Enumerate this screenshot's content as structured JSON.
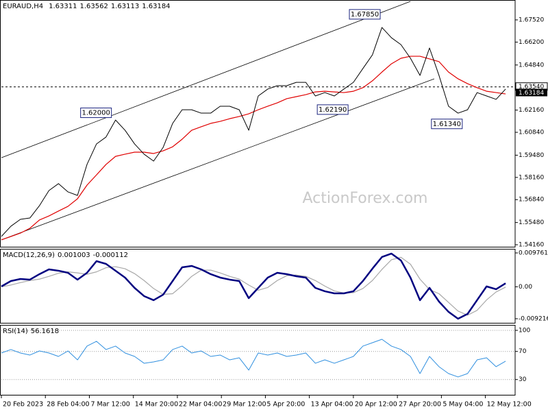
{
  "chart_data": [
    {
      "type": "line",
      "title": "EURAUD,H4",
      "ohlc": [
        1.63311,
        1.63562,
        1.63113,
        1.63184
      ],
      "watermark": "ActionForex.com",
      "x": [
        0,
        8,
        16,
        24,
        32,
        40,
        48,
        56,
        64,
        72,
        80,
        88,
        96,
        104,
        112,
        120,
        128,
        136,
        144,
        152,
        160,
        168,
        176,
        184,
        192,
        200,
        208,
        216,
        224,
        232,
        240,
        248,
        256,
        264,
        272,
        280,
        288,
        296,
        304,
        312,
        320,
        328,
        336,
        344,
        352,
        360,
        368,
        376,
        384,
        392,
        400,
        408,
        416,
        424
      ],
      "xlim": [
        0,
        432
      ],
      "ylim": [
        1.5404,
        1.6862
      ],
      "yticks": [
        {
          "value": 1.6752,
          "label": "1.67520"
        },
        {
          "value": 1.662,
          "label": "1.66200"
        },
        {
          "value": 1.6484,
          "label": "1.64840"
        },
        {
          "value": 1.6216,
          "label": "1.62160"
        },
        {
          "value": 1.6084,
          "label": "1.60840"
        },
        {
          "value": 1.5948,
          "label": "1.59480"
        },
        {
          "value": 1.5816,
          "label": "1.58160"
        },
        {
          "value": 1.5684,
          "label": "1.56840"
        },
        {
          "value": 1.5548,
          "label": "1.55480"
        },
        {
          "value": 1.5416,
          "label": "1.54160"
        }
      ],
      "hline": {
        "value": 1.6354,
        "label": "1.63540"
      },
      "series": [
        {
          "color": "#000000",
          "values": [
            1.5465,
            1.5526,
            1.5567,
            1.5575,
            1.5648,
            1.5738,
            1.5779,
            1.573,
            1.5709,
            1.5893,
            1.6015,
            1.6056,
            1.6157,
            1.6096,
            1.6015,
            1.5954,
            1.5913,
            1.5994,
            1.6137,
            1.6218,
            1.6218,
            1.6198,
            1.6198,
            1.6239,
            1.6239,
            1.6218,
            1.6096,
            1.63,
            1.6341,
            1.6361,
            1.6361,
            1.6381,
            1.6381,
            1.63,
            1.632,
            1.63,
            1.6341,
            1.6381,
            1.6463,
            1.6544,
            1.6707,
            1.6646,
            1.6605,
            1.6524,
            1.6422,
            1.6585,
            1.6422,
            1.6239,
            1.6198,
            1.6218,
            1.632,
            1.63,
            1.628,
            1.6341
          ]
        },
        {
          "color": "#e00000",
          "values": [
            1.5445,
            1.5465,
            1.5485,
            1.5514,
            1.5563,
            1.5587,
            1.5616,
            1.5644,
            1.5689,
            1.577,
            1.5831,
            1.5893,
            1.5941,
            1.5954,
            1.5966,
            1.5966,
            1.5958,
            1.5974,
            1.5998,
            1.6043,
            1.6096,
            1.6117,
            1.6137,
            1.6149,
            1.6165,
            1.6178,
            1.6194,
            1.6218,
            1.6239,
            1.6259,
            1.6284,
            1.6296,
            1.6308,
            1.6324,
            1.6328,
            1.6324,
            1.632,
            1.6328,
            1.6349,
            1.639,
            1.6442,
            1.6491,
            1.6524,
            1.6536,
            1.6536,
            1.652,
            1.6504,
            1.6442,
            1.6402,
            1.6373,
            1.6349,
            1.6328,
            1.632,
            1.6312
          ]
        }
      ],
      "trendlines": [
        {
          "x": [
            0,
            344
          ],
          "values": [
            1.5933,
            1.6862
          ]
        },
        {
          "x": [
            0,
            364
          ],
          "values": [
            1.5445,
            1.6402
          ]
        }
      ],
      "annotations": [
        {
          "x": 322,
          "value": 1.6785,
          "label": "1.67850"
        },
        {
          "x": 96,
          "value": 1.62,
          "label": "1.62000"
        },
        {
          "x": 295,
          "value": 1.6219,
          "label": "1.62190"
        },
        {
          "x": 391,
          "value": 1.6134,
          "label": "1.61340"
        }
      ]
    },
    {
      "type": "line",
      "title": "MACD(12,26,9)",
      "ylim": [
        -0.0106,
        0.01075
      ],
      "yticks": [
        0.009761,
        {
          "value": 0,
          "label": "0.00"
        },
        -0.009216
      ],
      "series": [
        {
          "color": "#000080",
          "values": [
            0.0001,
            0.00166,
            0.00225,
            0.00206,
            0.00364,
            0.00502,
            0.00463,
            0.00403,
            0.00206,
            0.00403,
            0.00739,
            0.0066,
            0.00463,
            0.00265,
            -0.00032,
            -0.00269,
            -0.00387,
            -0.00229,
            0.00166,
            0.00561,
            0.00601,
            0.00502,
            0.00364,
            0.00265,
            0.00206,
            0.00166,
            -0.00328,
            -0.00032,
            0.00265,
            0.00403,
            0.00364,
            0.00304,
            0.00265,
            -0.00032,
            -0.0013,
            -0.0019,
            -0.0019,
            -0.0013,
            0.00166,
            0.00522,
            0.00858,
            0.00957,
            0.00759,
            0.00265,
            -0.00387,
            -0.00032,
            -0.00427,
            -0.00723,
            -0.00921,
            -0.00783,
            -0.00387,
            0.0001,
            -0.00071,
            0.001003
          ]
        },
        {
          "color": "#a8a8a8",
          "values": [
            0,
            0.0005,
            0.0012,
            0.0018,
            0.0022,
            0.003,
            0.0039,
            0.0043,
            0.004,
            0.0036,
            0.0043,
            0.0055,
            0.0058,
            0.0052,
            0.0038,
            0.0018,
            -0.0005,
            -0.0022,
            -0.002,
            0.0003,
            0.003,
            0.0048,
            0.0048,
            0.004,
            0.003,
            0.0022,
            0.0005,
            -0.001,
            -0.0002,
            0.0018,
            0.0032,
            0.0034,
            0.003,
            0.0018,
            0.0002,
            -0.0012,
            -0.0018,
            -0.0017,
            -0.0005,
            0.0018,
            0.005,
            0.0078,
            0.0085,
            0.0065,
            0.0022,
            -0.0008,
            -0.002,
            -0.0045,
            -0.007,
            -0.0082,
            -0.0068,
            -0.0038,
            -0.0015,
            -0.000112
          ]
        }
      ]
    },
    {
      "type": "line",
      "title": "RSI(14)",
      "ylim": [
        7.3,
        106.8
      ],
      "yticks": [
        100,
        70,
        30
      ],
      "grid": true,
      "xticks": [
        {
          "value": 0,
          "label": "20 Feb 2023"
        },
        {
          "value": 37,
          "label": "28 Feb 04:00"
        },
        {
          "value": 74,
          "label": "7 Mar 12:00"
        },
        {
          "value": 111,
          "label": "14 Mar 20:00"
        },
        {
          "value": 148,
          "label": "22 Mar 04:00"
        },
        {
          "value": 185,
          "label": "29 Mar 12:00"
        },
        {
          "value": 222,
          "label": "5 Apr 20:00"
        },
        {
          "value": 259,
          "label": "13 Apr 04:00"
        },
        {
          "value": 296,
          "label": "20 Apr 12:00"
        },
        {
          "value": 333,
          "label": "27 Apr 20:00"
        },
        {
          "value": 370,
          "label": "5 May 04:00"
        },
        {
          "value": 407,
          "label": "12 May 12:00"
        }
      ],
      "series": [
        {
          "color": "#2f8fdf",
          "values": [
            67.8,
            72.7,
            67.8,
            64.9,
            70.7,
            67.8,
            62.9,
            70.7,
            58,
            77.6,
            84.4,
            72.7,
            77.6,
            67.8,
            62.9,
            53.2,
            55.1,
            58,
            72.7,
            77.6,
            67.8,
            70.7,
            62.9,
            64.9,
            58,
            61,
            43.4,
            67.8,
            64.9,
            67.8,
            62.9,
            64.9,
            67.8,
            53.2,
            58,
            53.2,
            58,
            62.9,
            77.6,
            82.4,
            87.3,
            77.6,
            72.7,
            62.9,
            38.5,
            62.9,
            48.3,
            38.5,
            33.7,
            38.5,
            58,
            61,
            48.3,
            56.1618
          ]
        }
      ]
    }
  ]
}
